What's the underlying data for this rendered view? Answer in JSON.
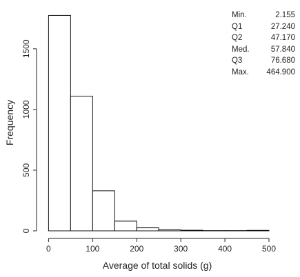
{
  "chart_data": {
    "type": "bar",
    "subtype": "histogram",
    "title": "",
    "xlabel": "Average of total solids (g)",
    "ylabel": "Frequency",
    "xlim": [
      -10,
      500
    ],
    "ylim": [
      0,
      1800
    ],
    "x_ticks": [
      0,
      100,
      200,
      300,
      400,
      500
    ],
    "x_tick_labels": [
      "0",
      "100",
      "200",
      "300",
      "400",
      "500"
    ],
    "y_ticks": [
      0,
      500,
      1000,
      1500
    ],
    "y_tick_labels": [
      "0",
      "500",
      "1000",
      "1500"
    ],
    "bins": [
      {
        "start": 0,
        "end": 50,
        "count": 1775
      },
      {
        "start": 50,
        "end": 100,
        "count": 1110
      },
      {
        "start": 100,
        "end": 150,
        "count": 330
      },
      {
        "start": 150,
        "end": 200,
        "count": 80
      },
      {
        "start": 200,
        "end": 250,
        "count": 25
      },
      {
        "start": 250,
        "end": 300,
        "count": 8
      },
      {
        "start": 300,
        "end": 350,
        "count": 5
      },
      {
        "start": 350,
        "end": 400,
        "count": 2
      },
      {
        "start": 400,
        "end": 450,
        "count": 2
      },
      {
        "start": 450,
        "end": 500,
        "count": 4
      }
    ],
    "grid": false,
    "bar_fill": "#ffffff",
    "bar_stroke": "#111111"
  },
  "summary_stats": [
    {
      "label": "Min.",
      "value": "2.155"
    },
    {
      "label": "Q1",
      "value": "27.240"
    },
    {
      "label": "Q2",
      "value": "47.170"
    },
    {
      "label": "Med.",
      "value": "57.840"
    },
    {
      "label": "Q3",
      "value": "76.680"
    },
    {
      "label": "Max.",
      "value": "464.900"
    }
  ]
}
